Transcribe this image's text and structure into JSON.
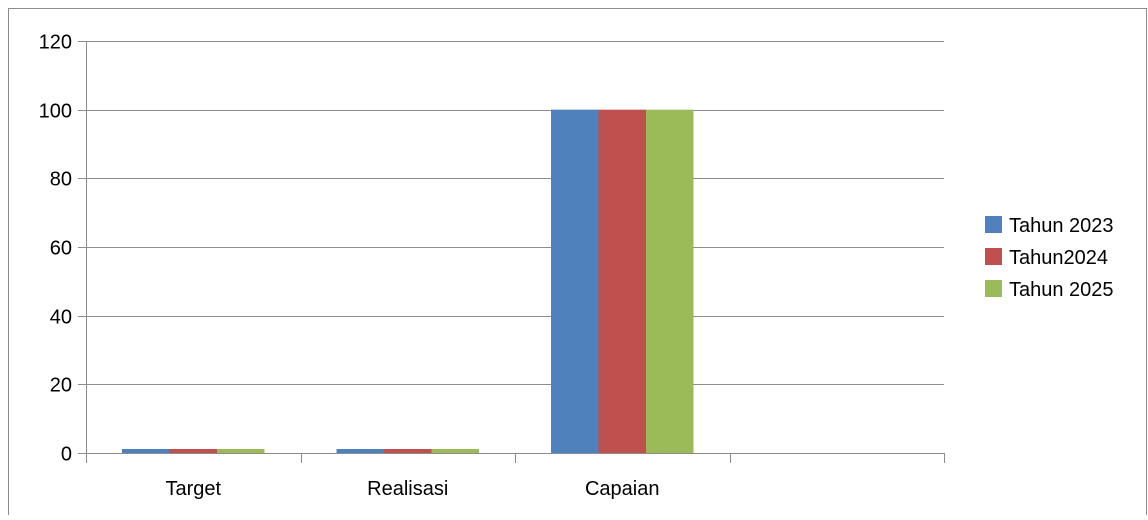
{
  "chart_data": {
    "type": "bar",
    "categories": [
      "Target",
      "Realisasi",
      "Capaian",
      ""
    ],
    "series": [
      {
        "name": "Tahun 2023",
        "color": "#4F81BD",
        "values": [
          1,
          1,
          100,
          null
        ]
      },
      {
        "name": "Tahun2024",
        "color": "#C0504D",
        "values": [
          1,
          1,
          100,
          null
        ]
      },
      {
        "name": "Tahun 2025",
        "color": "#9BBB59",
        "values": [
          1,
          1,
          100,
          null
        ]
      }
    ],
    "ylim": [
      0,
      120
    ],
    "yticks": [
      0,
      20,
      40,
      60,
      80,
      100,
      120
    ],
    "grid": true,
    "legend_position": "right"
  }
}
